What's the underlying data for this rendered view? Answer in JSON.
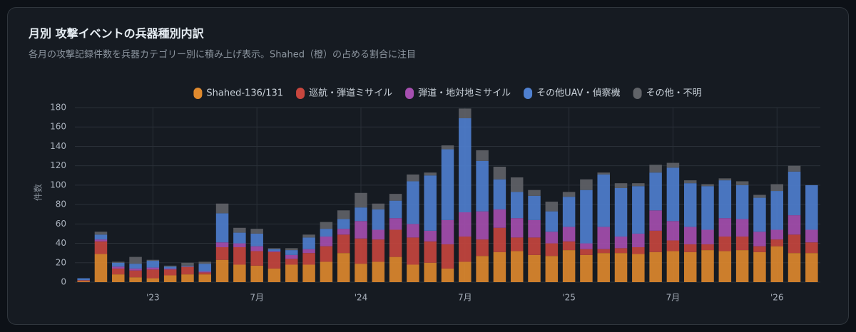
{
  "chart_data": {
    "type": "stacked_bar",
    "title": "月別 攻撃イベントの兵器種別内訳",
    "subtitle": "各月の攻撃記録件数を兵器カテゴリー別に積み上げ表示。Shahed（橙）の占める割合に注目",
    "y_label": "件数",
    "categories": [
      null,
      null,
      null,
      null,
      "'23",
      null,
      null,
      null,
      null,
      null,
      "7月",
      null,
      null,
      null,
      null,
      null,
      "'24",
      null,
      null,
      null,
      null,
      null,
      "7月",
      null,
      null,
      null,
      null,
      null,
      "'25",
      null,
      null,
      null,
      null,
      null,
      "7月",
      null,
      null,
      null,
      null,
      null,
      "'26",
      null,
      null
    ],
    "series": [
      {
        "name": "Shahed-136/131",
        "color": "#e08a2e",
        "values": [
          1,
          29,
          8,
          5,
          4,
          7,
          8,
          8,
          23,
          18,
          17,
          14,
          18,
          18,
          21,
          30,
          19,
          21,
          26,
          18,
          20,
          14,
          21,
          27,
          31,
          32,
          28,
          27,
          33,
          28,
          30,
          30,
          29,
          31,
          32,
          31,
          33,
          32,
          33,
          31,
          37,
          30,
          30
        ]
      },
      {
        "name": "巡航・弾道ミサイル",
        "color": "#c8463e",
        "values": [
          1,
          13,
          6,
          7,
          9,
          6,
          8,
          2,
          13,
          18,
          15,
          17,
          6,
          12,
          16,
          19,
          26,
          23,
          28,
          28,
          22,
          25,
          26,
          17,
          25,
          14,
          18,
          13,
          9,
          6,
          4,
          5,
          7,
          22,
          11,
          8,
          6,
          15,
          14,
          6,
          7,
          19,
          11
        ]
      },
      {
        "name": "弾道・地対地ミサイル",
        "color": "#a64fb0",
        "values": [
          0,
          2,
          2,
          2,
          2,
          1,
          0,
          1,
          5,
          4,
          5,
          1,
          4,
          4,
          10,
          6,
          18,
          10,
          12,
          14,
          11,
          25,
          25,
          29,
          19,
          20,
          18,
          12,
          15,
          6,
          23,
          12,
          14,
          21,
          20,
          18,
          15,
          19,
          18,
          15,
          10,
          20,
          13
        ]
      },
      {
        "name": "その他UAV・偵察機",
        "color": "#4f80d0",
        "values": [
          2,
          5,
          4,
          5,
          7,
          2,
          1,
          8,
          30,
          11,
          13,
          2,
          5,
          12,
          8,
          10,
          14,
          21,
          18,
          44,
          57,
          73,
          97,
          52,
          31,
          27,
          25,
          21,
          31,
          55,
          54,
          50,
          49,
          39,
          55,
          45,
          45,
          39,
          35,
          35,
          40,
          45,
          46
        ]
      },
      {
        "name": "その他・不明",
        "color": "#606368",
        "values": [
          0,
          3,
          1,
          7,
          1,
          1,
          3,
          2,
          10,
          5,
          5,
          1,
          2,
          3,
          7,
          9,
          15,
          6,
          7,
          7,
          3,
          4,
          10,
          11,
          13,
          15,
          6,
          10,
          5,
          11,
          2,
          5,
          3,
          8,
          5,
          3,
          2,
          2,
          4,
          3,
          7,
          6,
          0
        ]
      }
    ],
    "ylim": [
      0,
      180
    ],
    "yticks": [
      0,
      20,
      40,
      60,
      80,
      100,
      120,
      140,
      160,
      180
    ],
    "grid": true,
    "legend": "top"
  }
}
